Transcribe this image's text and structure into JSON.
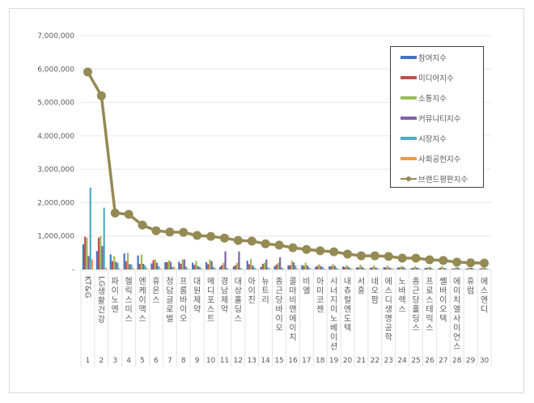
{
  "chart_data": {
    "type": "bar+line",
    "title": "",
    "xlabel": "",
    "ylabel": "",
    "ylim": [
      0,
      7000000
    ],
    "yticks": [
      "-",
      "1,000,000",
      "2,000,000",
      "3,000,000",
      "4,000,000",
      "5,000,000",
      "6,000,000",
      "7,000,000"
    ],
    "grid": true,
    "legend_position": "upper right (inside)",
    "x_numbers": [
      "1",
      "2",
      "3",
      "4",
      "5",
      "6",
      "7",
      "8",
      "9",
      "10",
      "11",
      "12",
      "13",
      "14",
      "15",
      "16",
      "17",
      "18",
      "19",
      "20",
      "21",
      "22",
      "23",
      "24",
      "25",
      "26",
      "27",
      "28",
      "29",
      "30"
    ],
    "categories": [
      "KT&G",
      "LG생활건강",
      "파이노엔",
      "헬릭스미스",
      "엔케이맥스",
      "휴온스",
      "청담글로벌",
      "프롬바이오",
      "대원제약",
      "메디포스트",
      "경남제약",
      "대상홀딩스",
      "아이진",
      "뉴트리",
      "종근당바이오",
      "콜마비앤에이치",
      "비엘",
      "아미코젠",
      "시너지이노베이션",
      "내츄럴엔도텍",
      "서흥",
      "네오팜",
      "에스디생명공학",
      "노바렉스",
      "종근당홀딩스",
      "프로스테믹스",
      "쎌바이오텍",
      "에이치엘사이언스",
      "휴럼",
      "에스엔디"
    ],
    "series": [
      {
        "name": "참여지수",
        "type": "bar",
        "color": "#4472c4",
        "values": [
          750000,
          550000,
          450000,
          480000,
          420000,
          180000,
          220000,
          230000,
          200000,
          220000,
          80000,
          90000,
          260000,
          80000,
          100000,
          120000,
          130000,
          80000,
          90000,
          90000,
          60000,
          50000,
          70000,
          60000,
          40000,
          40000,
          30000,
          30000,
          20000,
          20000
        ]
      },
      {
        "name": "미디어지수",
        "type": "bar",
        "color": "#c0504d",
        "values": [
          980000,
          950000,
          250000,
          250000,
          170000,
          280000,
          220000,
          170000,
          140000,
          160000,
          130000,
          130000,
          160000,
          170000,
          150000,
          130000,
          110000,
          110000,
          100000,
          70000,
          60000,
          60000,
          60000,
          60000,
          50000,
          50000,
          60000,
          30000,
          40000,
          40000
        ]
      },
      {
        "name": "소통지수",
        "type": "bar",
        "color": "#9bbb59",
        "values": [
          950000,
          1000000,
          400000,
          500000,
          450000,
          300000,
          280000,
          300000,
          260000,
          300000,
          200000,
          200000,
          310000,
          200000,
          200000,
          260000,
          200000,
          160000,
          160000,
          130000,
          140000,
          120000,
          120000,
          100000,
          100000,
          80000,
          100000,
          80000,
          60000,
          60000
        ]
      },
      {
        "name": "커뮤니티지수",
        "type": "bar",
        "color": "#8064a2",
        "values": [
          400000,
          700000,
          230000,
          160000,
          170000,
          200000,
          230000,
          300000,
          100000,
          250000,
          540000,
          540000,
          120000,
          300000,
          360000,
          210000,
          120000,
          100000,
          110000,
          80000,
          80000,
          60000,
          60000,
          80000,
          60000,
          60000,
          40000,
          60000,
          50000,
          40000
        ]
      },
      {
        "name": "시장지수",
        "type": "bar",
        "color": "#4bacc6",
        "values": [
          2450000,
          1850000,
          200000,
          150000,
          120000,
          100000,
          80000,
          90000,
          80000,
          80000,
          40000,
          40000,
          60000,
          60000,
          60000,
          120000,
          60000,
          70000,
          50000,
          40000,
          40000,
          40000,
          40000,
          40000,
          40000,
          30000,
          40000,
          30000,
          30000,
          20000
        ]
      },
      {
        "name": "사회공헌지수",
        "type": "bar",
        "color": "#f79646",
        "values": [
          300000,
          50000,
          30000,
          40000,
          40000,
          30000,
          80000,
          30000,
          30000,
          40000,
          10000,
          10000,
          20000,
          20000,
          20000,
          30000,
          20000,
          20000,
          20000,
          20000,
          20000,
          10000,
          20000,
          10000,
          20000,
          10000,
          10000,
          10000,
          10000,
          10000
        ]
      },
      {
        "name": "브랜드평판지수",
        "type": "line",
        "color": "#948a54",
        "values": [
          5910000,
          5200000,
          1690000,
          1650000,
          1330000,
          1160000,
          1120000,
          1110000,
          1020000,
          990000,
          940000,
          870000,
          850000,
          770000,
          730000,
          650000,
          600000,
          560000,
          530000,
          460000,
          410000,
          410000,
          390000,
          340000,
          340000,
          290000,
          270000,
          220000,
          200000,
          190000
        ]
      }
    ]
  },
  "legend": {
    "items": [
      {
        "label": "참여지수",
        "color": "#4472c4",
        "kind": "bar"
      },
      {
        "label": "미디어지수",
        "color": "#c0504d",
        "kind": "bar"
      },
      {
        "label": "소통지수",
        "color": "#9bbb59",
        "kind": "bar"
      },
      {
        "label": "커뮤니티지수",
        "color": "#8064a2",
        "kind": "bar"
      },
      {
        "label": "시장지수",
        "color": "#4bacc6",
        "kind": "bar"
      },
      {
        "label": "사회공헌지수",
        "color": "#f79646",
        "kind": "bar"
      },
      {
        "label": "브랜드평판지수",
        "color": "#948a54",
        "kind": "line"
      }
    ]
  }
}
